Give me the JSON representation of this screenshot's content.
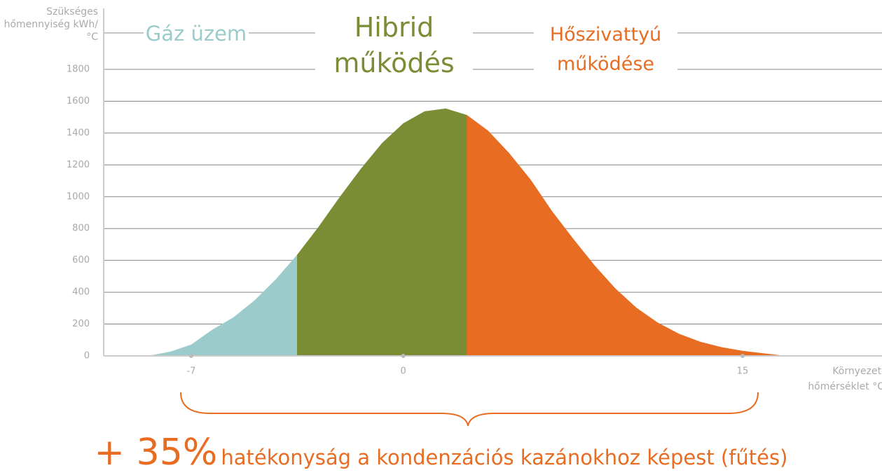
{
  "chart_data": {
    "type": "area",
    "y_label": "Szükséges hőmennyiség kWh/°C",
    "x_label": "Környezeti hőmérséklet °C",
    "categories": [
      null,
      null,
      "-7",
      null,
      null,
      null,
      null,
      null,
      null,
      null,
      null,
      null,
      "0",
      null,
      null,
      null,
      null,
      null,
      null,
      null,
      null,
      null,
      null,
      null,
      null,
      null,
      null,
      null,
      "15",
      null,
      null
    ],
    "series": [
      {
        "name": "Gáz üzem",
        "color": "#9ccbcb",
        "values": [
          0,
          25,
          70,
          164,
          242,
          350,
          481,
          635,
          null,
          null,
          null,
          null,
          null,
          null,
          null,
          null,
          null,
          null,
          null,
          null,
          null,
          null,
          null,
          null,
          null,
          null,
          null,
          null,
          null,
          null,
          null
        ]
      },
      {
        "name": "Hibrid működés",
        "color": "#7a8c34",
        "values": [
          null,
          null,
          null,
          null,
          null,
          null,
          null,
          635,
          809,
          996,
          1174,
          1336,
          1460,
          1535,
          1553,
          1512,
          null,
          null,
          null,
          null,
          null,
          null,
          null,
          null,
          null,
          null,
          null,
          null,
          null,
          null,
          null
        ]
      },
      {
        "name": "Hőszivattyú működése",
        "color": "#e86c21",
        "values": [
          null,
          null,
          null,
          null,
          null,
          null,
          null,
          null,
          null,
          null,
          null,
          null,
          null,
          null,
          null,
          1512,
          1414,
          1272,
          1107,
          911,
          737,
          571,
          423,
          301,
          208,
          138,
          88,
          54,
          31,
          15,
          0
        ]
      }
    ],
    "ylim": [
      0,
      1800
    ],
    "yticks": [
      0,
      200,
      400,
      600,
      800,
      1000,
      1200,
      1400,
      1600,
      1800
    ],
    "grid": true,
    "annotation": {
      "highlight": "+ 35%",
      "text": "hatékonyság a kondenzációs kazánokhoz képest (fűtés)"
    }
  }
}
